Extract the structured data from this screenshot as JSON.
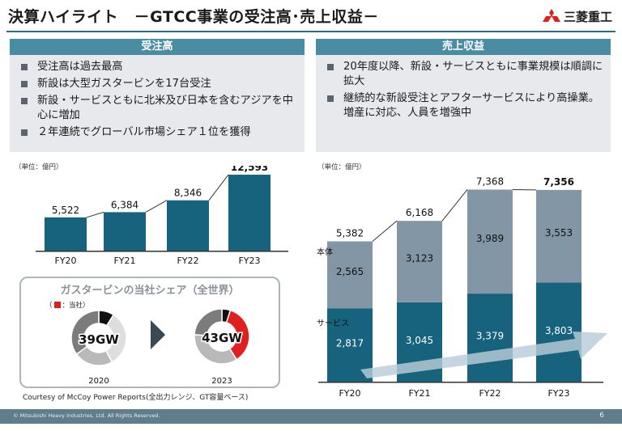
{
  "header": {
    "title": "決算ハイライト　－GTCC事業の受注高･売上収益－",
    "logo_text": "三菱重工",
    "logo_icon": "three-diamond-icon",
    "brand_color": "#e02020"
  },
  "orders_panel": {
    "heading": "受注高",
    "bullets": [
      "受注高は過去最高",
      "新設は大型ガスタービンを17台受注",
      "新設・サービスともに北米及び日本を含むアジアを中心に増加",
      "２年連続でグローバル市場シェア１位を獲得"
    ]
  },
  "revenue_panel": {
    "heading": "売上収益",
    "bullets": [
      "20年度以降、新設・サービスともに事業規模は順調に拡大",
      "継続的な新設受注とアフターサービスにより高操業。増産に対応、人員を増強中"
    ]
  },
  "share_box": {
    "title": "ガスタービンの当社シェア（全世界）",
    "legend_open": "（",
    "legend_label": "：当社）",
    "courtesy": "Courtesy of McCoy Power Reports(全出力レンジ、GT容量ベース)"
  },
  "footer": {
    "copyright": "© Mitsubishi Heavy Industries, Ltd.  All Rights Reserved.",
    "page": "6"
  },
  "chart_data": [
    {
      "type": "bar",
      "unit_label": "（単位：億円）",
      "categories": [
        "FY20",
        "FY21",
        "FY22",
        "FY23"
      ],
      "values": [
        5522,
        6384,
        8346,
        12593
      ],
      "value_labels": [
        "5,522",
        "6,384",
        "8,346",
        "12,593"
      ],
      "highlight_last": true,
      "color": "#17627c",
      "ylim": [
        0,
        13000
      ]
    },
    {
      "type": "bar",
      "stacked": true,
      "unit_label": "（単位：億円）",
      "categories": [
        "FY20",
        "FY21",
        "FY22",
        "FY23"
      ],
      "totals": [
        "5,382",
        "6,168",
        "7,368",
        "7,356"
      ],
      "series": [
        {
          "name": "サービス",
          "values": [
            2817,
            3045,
            3379,
            3803
          ],
          "labels": [
            "2,817",
            "3,045",
            "3,379",
            "3,803"
          ],
          "color": "#17627c"
        },
        {
          "name": "本体",
          "values": [
            2565,
            3123,
            3989,
            3553
          ],
          "labels": [
            "2,565",
            "3,123",
            "3,989",
            "3,553"
          ],
          "color": "#8296a6"
        }
      ],
      "highlight_last": true,
      "ylim": [
        0,
        7600
      ]
    },
    {
      "type": "pie",
      "donut": true,
      "label": "2020",
      "center_text": "39GW",
      "values": [
        0.09,
        0.33,
        0.23,
        0.35
      ],
      "colors": [
        "#111111",
        "#dedede",
        "#b9b9b9",
        "#7c7c7c"
      ]
    },
    {
      "type": "pie",
      "donut": true,
      "label": "2023",
      "center_text": "43GW",
      "values": [
        0.05,
        0.36,
        0.35,
        0.24
      ],
      "colors": [
        "#111111",
        "#e02020",
        "#b9b9b9",
        "#7c7c7c"
      ]
    }
  ]
}
